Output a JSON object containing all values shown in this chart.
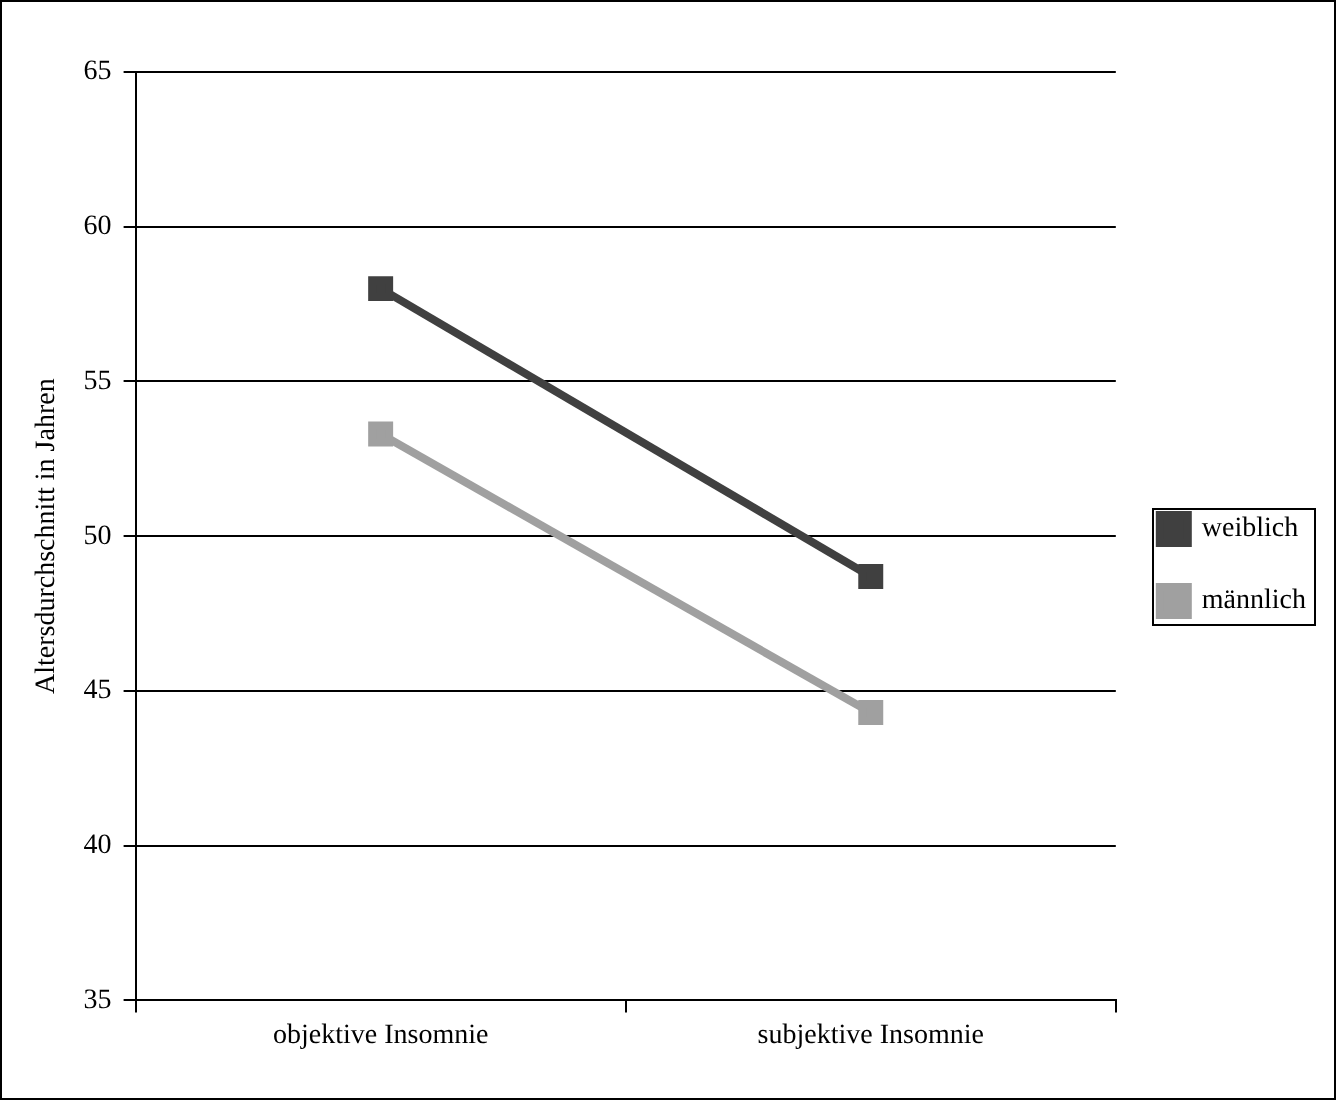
{
  "chart_data": {
    "type": "line",
    "ylabel": "Altersdurchschnitt in Jahren",
    "categories": [
      "objektive Insomnie",
      "subjektive Insomnie"
    ],
    "series": [
      {
        "name": "weiblich",
        "color": "#404040",
        "values": [
          58,
          48.7
        ]
      },
      {
        "name": "männlich",
        "color": "#a0a0a0",
        "values": [
          53.3,
          44.3
        ]
      }
    ],
    "ylim": [
      35,
      65
    ],
    "yticks": [
      35,
      40,
      45,
      50,
      55,
      60,
      65
    ],
    "grid": "y",
    "legend": "right",
    "marker": "square",
    "line_style": "solid"
  }
}
